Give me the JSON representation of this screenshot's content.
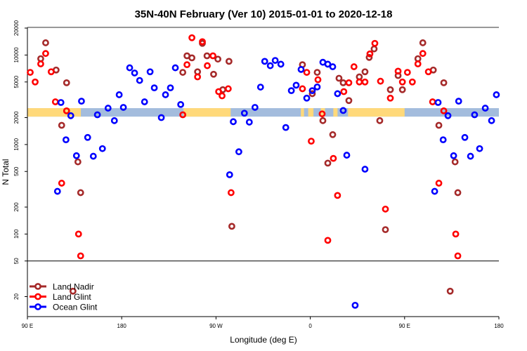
{
  "chart_data": {
    "type": "scatter",
    "title": "35N-40N February (Ver 10)   2015-01-01 to 2020-12-18",
    "xlabel": "Longitude (deg E)",
    "ylabel": "N Total",
    "x_scale": "longitude, 90E to 180 (450 degree span, 90E-180 repeated at right)",
    "y_scale": "log",
    "ylim": [
      12,
      20500
    ],
    "x_ticks": [
      "90 E",
      "180",
      "90 W",
      "0",
      "90 E",
      "180"
    ],
    "y_ticks": [
      "20000",
      "10000",
      "5000",
      "2000",
      "1000",
      "500",
      "200",
      "100",
      "50",
      "20"
    ],
    "separator_line_value": 50,
    "grid": false,
    "legend_position": "bottom-left",
    "land_mask_band": {
      "value_range": [
        2050,
        2550
      ],
      "land_color": "#FFD97A",
      "ocean_color": "#A3BCDD",
      "land_segments_lon": [
        [
          -121,
          -76
        ],
        [
          -9,
          -6
        ],
        [
          -2,
          3
        ],
        [
          10,
          14
        ],
        [
          22,
          26
        ],
        [
          36,
          141
        ]
      ]
    },
    "series": [
      {
        "name": "Land Nadir",
        "color": "#A52A2A",
        "points": [
          [
            102.7,
            9100
          ],
          [
            107.4,
            13700
          ],
          [
            117.4,
            6800
          ],
          [
            127.4,
            4900
          ],
          [
            122.7,
            1640
          ],
          [
            138.2,
            640
          ],
          [
            140.8,
            290
          ],
          [
            133.5,
            23
          ],
          [
            -121.7,
            6400
          ],
          [
            -117.7,
            9800
          ],
          [
            -113,
            9300
          ],
          [
            -107.6,
            6500
          ],
          [
            -103,
            13500
          ],
          [
            -98.6,
            9800
          ],
          [
            -92.3,
            6100
          ],
          [
            -88.2,
            9000
          ],
          [
            -83.5,
            4100
          ],
          [
            -77.6,
            8500
          ],
          [
            -74.9,
            122
          ],
          [
            -7.5,
            7800
          ],
          [
            1.9,
            3700
          ],
          [
            6.6,
            6400
          ],
          [
            12,
            1850
          ],
          [
            21.4,
            1290
          ],
          [
            16.7,
            620
          ],
          [
            27.4,
            5500
          ],
          [
            31.4,
            4900
          ],
          [
            36.8,
            3100
          ],
          [
            46.8,
            5700
          ],
          [
            52.2,
            6500
          ],
          [
            56.2,
            9400
          ],
          [
            60.9,
            11700
          ],
          [
            66.3,
            1850
          ],
          [
            76.4,
            4100
          ],
          [
            71.7,
            112
          ],
          [
            83.8,
            5900
          ],
          [
            87.9,
            4100
          ]
        ]
      },
      {
        "name": "Land Glint",
        "color": "#FF0000",
        "points": [
          [
            92.7,
            6400
          ],
          [
            97.4,
            5000
          ],
          [
            102.7,
            7960
          ],
          [
            107.4,
            10400
          ],
          [
            112.7,
            6500
          ],
          [
            116.7,
            3000
          ],
          [
            127.4,
            2380
          ],
          [
            122.7,
            370
          ],
          [
            138.8,
            100
          ],
          [
            140.8,
            57
          ],
          [
            -121.7,
            2150
          ],
          [
            -117.7,
            7800
          ],
          [
            -113,
            15600
          ],
          [
            -107.6,
            5700
          ],
          [
            -103,
            14100
          ],
          [
            -98.3,
            7600
          ],
          [
            -92.9,
            9800
          ],
          [
            -87.5,
            3900
          ],
          [
            -84.2,
            3500
          ],
          [
            -78.3,
            4200
          ],
          [
            -75.6,
            290
          ],
          [
            -3.4,
            6400
          ],
          [
            -7.5,
            4200
          ],
          [
            0.9,
            1090
          ],
          [
            7.3,
            5300
          ],
          [
            11.3,
            2200
          ],
          [
            22,
            700
          ],
          [
            26,
            270
          ],
          [
            16.7,
            85
          ],
          [
            32,
            3900
          ],
          [
            36.8,
            4900
          ],
          [
            41.7,
            7400
          ],
          [
            46.8,
            5000
          ],
          [
            52.2,
            5000
          ],
          [
            56.9,
            10300
          ],
          [
            61.6,
            13500
          ],
          [
            67,
            5100
          ],
          [
            76.4,
            3300
          ],
          [
            71.7,
            190
          ],
          [
            83.8,
            6600
          ],
          [
            87.9,
            5000
          ]
        ]
      },
      {
        "name": "Ocean Glint",
        "color": "#0000FF",
        "points": [
          [
            122,
            2950
          ],
          [
            131.4,
            2100
          ],
          [
            126.8,
            1130
          ],
          [
            136.8,
            750
          ],
          [
            118.7,
            300
          ],
          [
            141.6,
            3050
          ],
          [
            147.5,
            1200
          ],
          [
            152.9,
            740
          ],
          [
            156.8,
            2150
          ],
          [
            161.6,
            900
          ],
          [
            167,
            2550
          ],
          [
            173,
            1850
          ],
          [
            177.6,
            3600
          ],
          [
            -178.4,
            2600
          ],
          [
            -172.4,
            7200
          ],
          [
            -167.7,
            6300
          ],
          [
            -162.9,
            5200
          ],
          [
            -158.2,
            3000
          ],
          [
            -152.9,
            6500
          ],
          [
            -148.9,
            4300
          ],
          [
            -142.2,
            2000
          ],
          [
            -138.2,
            3600
          ],
          [
            -133.5,
            4300
          ],
          [
            -128.8,
            7200
          ],
          [
            -123.7,
            2800
          ],
          [
            -77,
            460
          ],
          [
            -73.5,
            1800
          ],
          [
            -68.2,
            830
          ],
          [
            -62.9,
            2240
          ],
          [
            -58.2,
            1780
          ],
          [
            -52.8,
            2600
          ],
          [
            -47.5,
            4380
          ],
          [
            -43.5,
            8500
          ],
          [
            -38.2,
            7600
          ],
          [
            -33.5,
            8700
          ],
          [
            -28.1,
            7900
          ],
          [
            -23.4,
            1550
          ],
          [
            -18.1,
            4000
          ],
          [
            -13.5,
            4600
          ],
          [
            -8.8,
            6900
          ],
          [
            -3.4,
            3300
          ],
          [
            1.9,
            4000
          ],
          [
            6.6,
            4400
          ],
          [
            12,
            8300
          ],
          [
            16.7,
            7900
          ],
          [
            21.4,
            7400
          ],
          [
            26,
            3700
          ],
          [
            31.4,
            2400
          ],
          [
            34.8,
            760
          ],
          [
            42.8,
            16
          ],
          [
            52.2,
            530
          ]
        ]
      }
    ]
  }
}
